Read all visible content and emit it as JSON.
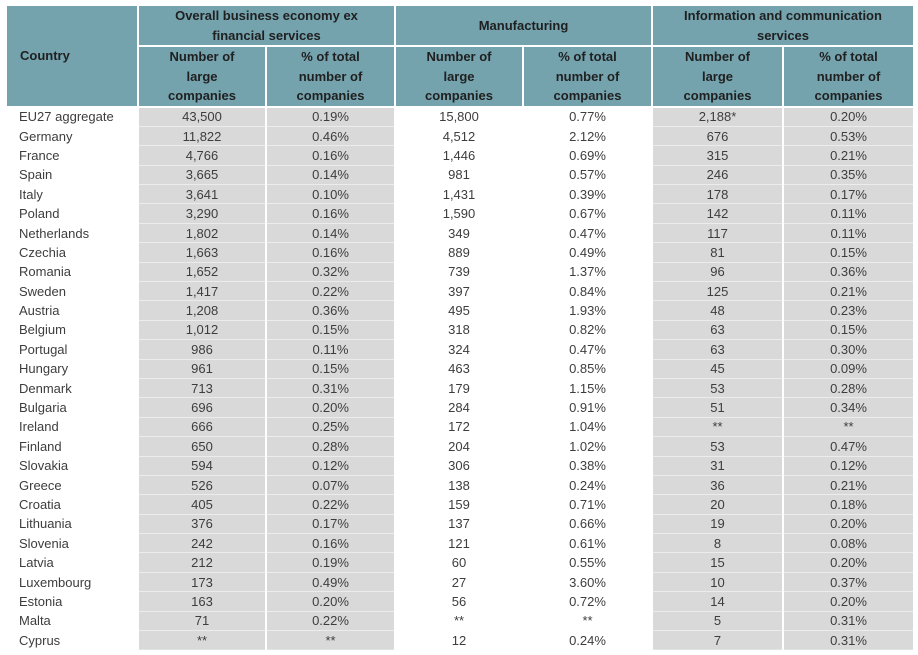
{
  "colors": {
    "header_background": "#74a3ae",
    "header_text": "#202020",
    "band_background": "#d9d9d9",
    "body_text": "#3d3d3d",
    "page_background": "#ffffff"
  },
  "header": {
    "country": "Country",
    "groups": [
      {
        "label": "Overall business economy ex\nfinancial services",
        "columns": [
          "Number of\nlarge\ncompanies",
          "% of total\nnumber of\ncompanies"
        ]
      },
      {
        "label": "Manufacturing",
        "columns": [
          "Number of\nlarge\ncompanies",
          "% of total\nnumber of\ncompanies"
        ]
      },
      {
        "label": "Information and communication\nservices",
        "columns": [
          "Number of\nlarge\ncompanies",
          "% of total\nnumber of\ncompanies"
        ]
      }
    ]
  },
  "chart_data": {
    "type": "table",
    "column_groups": [
      "",
      "Overall business economy ex financial services",
      "Manufacturing",
      "Information and communication services"
    ],
    "columns": [
      "Country",
      "Number of large companies",
      "% of total number of companies",
      "Number of large companies",
      "% of total number of companies",
      "Number of large companies",
      "% of total number of companies"
    ],
    "rows": [
      [
        "EU27 aggregate",
        "43,500",
        "0.19%",
        "15,800",
        "0.77%",
        "2,188*",
        "0.20%"
      ],
      [
        "Germany",
        "11,822",
        "0.46%",
        "4,512",
        "2.12%",
        "676",
        "0.53%"
      ],
      [
        "France",
        "4,766",
        "0.16%",
        "1,446",
        "0.69%",
        "315",
        "0.21%"
      ],
      [
        "Spain",
        "3,665",
        "0.14%",
        "981",
        "0.57%",
        "246",
        "0.35%"
      ],
      [
        "Italy",
        "3,641",
        "0.10%",
        "1,431",
        "0.39%",
        "178",
        "0.17%"
      ],
      [
        "Poland",
        "3,290",
        "0.16%",
        "1,590",
        "0.67%",
        "142",
        "0.11%"
      ],
      [
        "Netherlands",
        "1,802",
        "0.14%",
        "349",
        "0.47%",
        "117",
        "0.11%"
      ],
      [
        "Czechia",
        "1,663",
        "0.16%",
        "889",
        "0.49%",
        "81",
        "0.15%"
      ],
      [
        "Romania",
        "1,652",
        "0.32%",
        "739",
        "1.37%",
        "96",
        "0.36%"
      ],
      [
        "Sweden",
        "1,417",
        "0.22%",
        "397",
        "0.84%",
        "125",
        "0.21%"
      ],
      [
        "Austria",
        "1,208",
        "0.36%",
        "495",
        "1.93%",
        "48",
        "0.23%"
      ],
      [
        "Belgium",
        "1,012",
        "0.15%",
        "318",
        "0.82%",
        "63",
        "0.15%"
      ],
      [
        "Portugal",
        "986",
        "0.11%",
        "324",
        "0.47%",
        "63",
        "0.30%"
      ],
      [
        "Hungary",
        "961",
        "0.15%",
        "463",
        "0.85%",
        "45",
        "0.09%"
      ],
      [
        "Denmark",
        "713",
        "0.31%",
        "179",
        "1.15%",
        "53",
        "0.28%"
      ],
      [
        "Bulgaria",
        "696",
        "0.20%",
        "284",
        "0.91%",
        "51",
        "0.34%"
      ],
      [
        "Ireland",
        "666",
        "0.25%",
        "172",
        "1.04%",
        "**",
        "**"
      ],
      [
        "Finland",
        "650",
        "0.28%",
        "204",
        "1.02%",
        "53",
        "0.47%"
      ],
      [
        "Slovakia",
        "594",
        "0.12%",
        "306",
        "0.38%",
        "31",
        "0.12%"
      ],
      [
        "Greece",
        "526",
        "0.07%",
        "138",
        "0.24%",
        "36",
        "0.21%"
      ],
      [
        "Croatia",
        "405",
        "0.22%",
        "159",
        "0.71%",
        "20",
        "0.18%"
      ],
      [
        "Lithuania",
        "376",
        "0.17%",
        "137",
        "0.66%",
        "19",
        "0.20%"
      ],
      [
        "Slovenia",
        "242",
        "0.16%",
        "121",
        "0.61%",
        "8",
        "0.08%"
      ],
      [
        "Latvia",
        "212",
        "0.19%",
        "60",
        "0.55%",
        "15",
        "0.20%"
      ],
      [
        "Luxembourg",
        "173",
        "0.49%",
        "27",
        "3.60%",
        "10",
        "0.37%"
      ],
      [
        "Estonia",
        "163",
        "0.20%",
        "56",
        "0.72%",
        "14",
        "0.20%"
      ],
      [
        "Malta",
        "71",
        "0.22%",
        "**",
        "**",
        "5",
        "0.31%"
      ],
      [
        "Cyprus",
        "**",
        "**",
        "12",
        "0.24%",
        "7",
        "0.31%"
      ]
    ]
  }
}
